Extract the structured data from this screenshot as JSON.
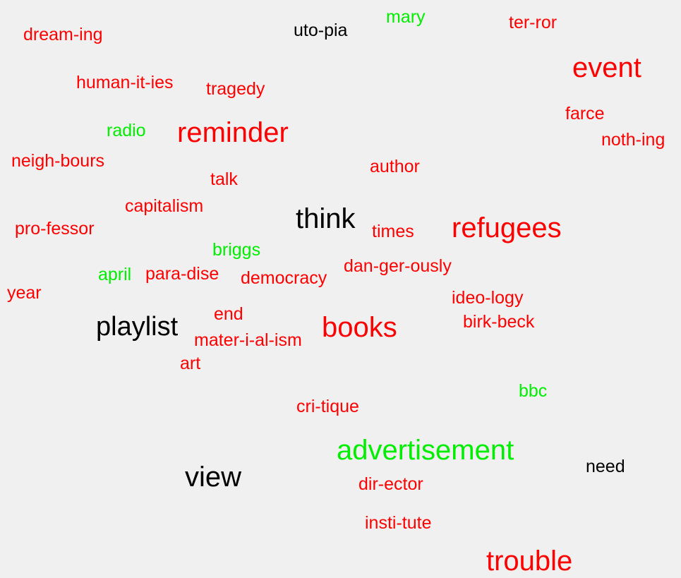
{
  "colors": {
    "red": "#ff0000",
    "green": "#00ee00",
    "black": "#000000",
    "background": "#f0f0f0"
  },
  "words": [
    {
      "text": "mary",
      "color": "green"
    },
    {
      "text": "ter-ror",
      "color": "red"
    },
    {
      "text": "dream-ing",
      "color": "red"
    },
    {
      "text": "uto-pia",
      "color": "black"
    },
    {
      "text": "event",
      "color": "red"
    },
    {
      "text": "human-it-ies",
      "color": "red"
    },
    {
      "text": "tragedy",
      "color": "red"
    },
    {
      "text": "farce",
      "color": "red"
    },
    {
      "text": "radio",
      "color": "green"
    },
    {
      "text": "reminder",
      "color": "red"
    },
    {
      "text": "noth-ing",
      "color": "red"
    },
    {
      "text": "neigh-bours",
      "color": "red"
    },
    {
      "text": "author",
      "color": "red"
    },
    {
      "text": "talk",
      "color": "red"
    },
    {
      "text": "capitalism",
      "color": "red"
    },
    {
      "text": "think",
      "color": "black"
    },
    {
      "text": "pro-fessor",
      "color": "red"
    },
    {
      "text": "times",
      "color": "red"
    },
    {
      "text": "refugees",
      "color": "red"
    },
    {
      "text": "briggs",
      "color": "green"
    },
    {
      "text": "dan-ger-ously",
      "color": "red"
    },
    {
      "text": "april",
      "color": "green"
    },
    {
      "text": "para-dise",
      "color": "red"
    },
    {
      "text": "democracy",
      "color": "red"
    },
    {
      "text": "year",
      "color": "red"
    },
    {
      "text": "ideo-logy",
      "color": "red"
    },
    {
      "text": "end",
      "color": "red"
    },
    {
      "text": "birk-beck",
      "color": "red"
    },
    {
      "text": "playlist",
      "color": "black"
    },
    {
      "text": "books",
      "color": "red"
    },
    {
      "text": "mater-i-al-ism",
      "color": "red"
    },
    {
      "text": "art",
      "color": "red"
    },
    {
      "text": "bbc",
      "color": "green"
    },
    {
      "text": "cri-tique",
      "color": "red"
    },
    {
      "text": "advertisement",
      "color": "green"
    },
    {
      "text": "need",
      "color": "black"
    },
    {
      "text": "view",
      "color": "black"
    },
    {
      "text": "dir-ector",
      "color": "red"
    },
    {
      "text": "insti-tute",
      "color": "red"
    },
    {
      "text": "trouble",
      "color": "red"
    }
  ]
}
